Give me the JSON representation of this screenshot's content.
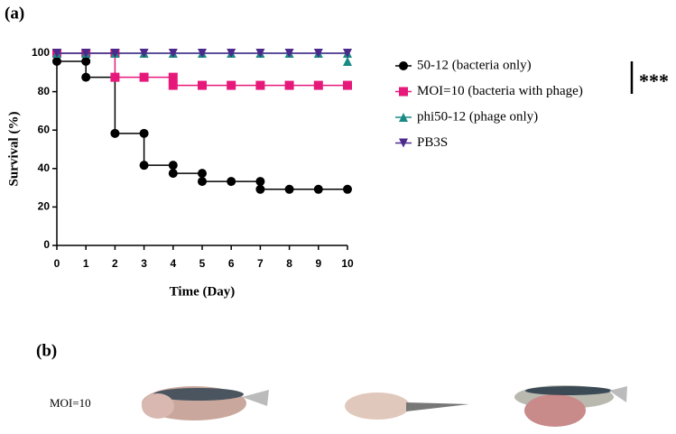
{
  "panel_labels": [
    "(a)",
    "(b)"
  ],
  "image_label": "MOI=10",
  "chart_data": {
    "type": "survival",
    "xlabel": "Time (Day)",
    "ylabel": "Survival (%)",
    "xlim": [
      0,
      10
    ],
    "xticks": [
      0,
      1,
      2,
      3,
      4,
      5,
      6,
      7,
      8,
      9,
      10
    ],
    "ylim": [
      0,
      100
    ],
    "yticks": [
      0,
      20,
      40,
      60,
      80,
      100
    ],
    "annotation": "***",
    "series": [
      {
        "name": "50-12 (bacteria only)",
        "color": "#000000",
        "marker": "circle",
        "x": [
          0,
          0,
          1,
          1,
          2,
          2,
          3,
          3,
          4,
          4,
          5,
          5,
          6,
          7,
          7,
          8,
          9,
          10
        ],
        "values": [
          100,
          95.8,
          95.8,
          87.5,
          87.5,
          58.3,
          58.3,
          41.7,
          41.7,
          37.5,
          37.5,
          33.3,
          33.3,
          33.3,
          29.2,
          29.2,
          29.2,
          29.2
        ]
      },
      {
        "name": "MOI=10 (bacteria with phage)",
        "color": "#e6197a",
        "marker": "square",
        "x": [
          0,
          1,
          2,
          2,
          3,
          4,
          4,
          5,
          6,
          7,
          8,
          9,
          10
        ],
        "values": [
          100,
          100,
          100,
          87.5,
          87.5,
          87.5,
          83.3,
          83.3,
          83.3,
          83.3,
          83.3,
          83.3,
          83.3
        ]
      },
      {
        "name": "phi50-12 (phage only)",
        "color": "#1a8a84",
        "marker": "triangle-up",
        "x": [
          0,
          1,
          2,
          3,
          4,
          5,
          6,
          7,
          8,
          9,
          10,
          10
        ],
        "values": [
          100,
          100,
          100,
          100,
          100,
          100,
          100,
          100,
          100,
          100,
          100,
          95.8
        ]
      },
      {
        "name": "PB3S",
        "color": "#4b2a8c",
        "marker": "triangle-down",
        "x": [
          0,
          1,
          2,
          3,
          4,
          5,
          6,
          7,
          8,
          9,
          10
        ],
        "values": [
          100,
          100,
          100,
          100,
          100,
          100,
          100,
          100,
          100,
          100,
          100
        ]
      }
    ]
  }
}
